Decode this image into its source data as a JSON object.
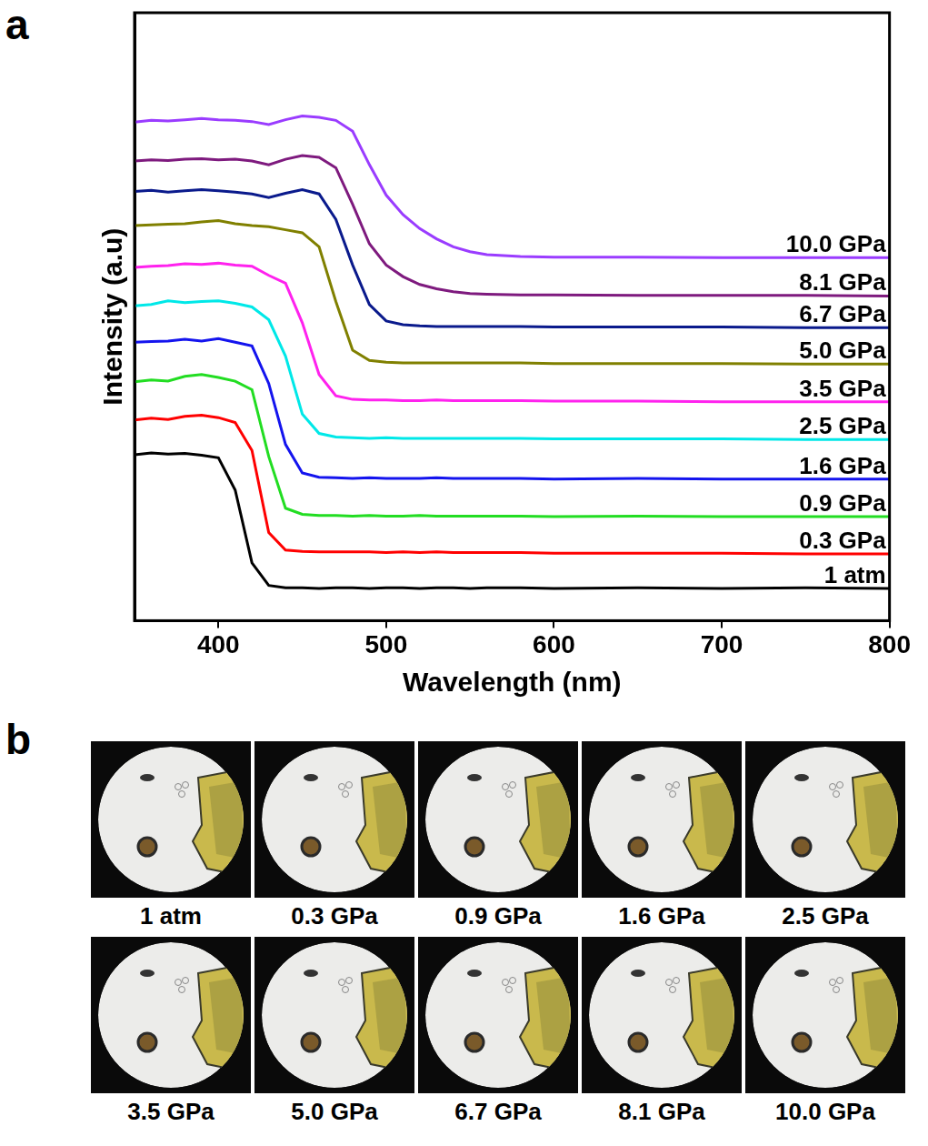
{
  "chart_data": {
    "type": "line",
    "panel_label": "a",
    "x_label": "Wavelength (nm)",
    "y_label": "Intensity (a.u)",
    "x": [
      350,
      360,
      370,
      380,
      390,
      400,
      410,
      420,
      430,
      440,
      450,
      460,
      470,
      480,
      490,
      500,
      510,
      520,
      530,
      540,
      550,
      560,
      580,
      600,
      650,
      700,
      750,
      800
    ],
    "series": [
      {
        "name": "1 atm",
        "color": "#000000",
        "values": [
          27.3,
          27.6,
          27.4,
          27.5,
          27.2,
          26.8,
          21.5,
          9.5,
          5.8,
          5.4,
          5.4,
          5.3,
          5.4,
          5.4,
          5.3,
          5.4,
          5.4,
          5.3,
          5.4,
          5.4,
          5.3,
          5.4,
          5.4,
          5.3,
          5.4,
          5.3,
          5.4,
          5.3
        ]
      },
      {
        "name": "0.3 GPa",
        "color": "#ff0000",
        "values": [
          33.0,
          33.3,
          33.1,
          33.6,
          33.8,
          33.4,
          32.6,
          28.0,
          14.5,
          11.6,
          11.4,
          11.3,
          11.3,
          11.3,
          11.3,
          11.2,
          11.3,
          11.2,
          11.3,
          11.2,
          11.2,
          11.2,
          11.2,
          11.1,
          11.1,
          11.1,
          11.0,
          11.0
        ]
      },
      {
        "name": "0.9 GPa",
        "color": "#22dd22",
        "values": [
          39.3,
          39.6,
          39.4,
          40.2,
          40.5,
          40.0,
          39.4,
          38.0,
          27.0,
          18.5,
          17.5,
          17.3,
          17.3,
          17.2,
          17.3,
          17.2,
          17.2,
          17.3,
          17.2,
          17.2,
          17.2,
          17.2,
          17.2,
          17.1,
          17.2,
          17.1,
          17.1,
          17.1
        ]
      },
      {
        "name": "1.6 GPa",
        "color": "#1414ee",
        "values": [
          45.8,
          45.9,
          46.0,
          46.3,
          46.0,
          46.4,
          45.8,
          45.2,
          39.0,
          29.0,
          24.3,
          23.6,
          23.5,
          23.4,
          23.5,
          23.4,
          23.4,
          23.4,
          23.5,
          23.4,
          23.4,
          23.4,
          23.4,
          23.3,
          23.4,
          23.3,
          23.3,
          23.3
        ]
      },
      {
        "name": "2.5 GPa",
        "color": "#00e8e8",
        "values": [
          51.8,
          52.0,
          52.6,
          52.3,
          52.5,
          52.6,
          52.2,
          51.6,
          49.5,
          43.5,
          34.0,
          30.8,
          30.2,
          30.1,
          30.0,
          30.1,
          30.0,
          30.0,
          30.0,
          30.0,
          30.0,
          30.0,
          30.0,
          29.9,
          29.9,
          29.9,
          29.8,
          29.8
        ]
      },
      {
        "name": "3.5 GPa",
        "color": "#ff22ee",
        "values": [
          58.1,
          58.3,
          58.4,
          58.7,
          58.6,
          58.8,
          58.5,
          58.3,
          56.8,
          55.5,
          49.0,
          40.5,
          37.0,
          36.4,
          36.3,
          36.3,
          36.2,
          36.2,
          36.3,
          36.2,
          36.2,
          36.2,
          36.2,
          36.1,
          36.1,
          36.0,
          36.0,
          36.0
        ]
      },
      {
        "name": "5.0 GPa",
        "color": "#808000",
        "values": [
          65.0,
          65.1,
          65.2,
          65.3,
          65.6,
          65.8,
          65.3,
          65.0,
          64.8,
          64.3,
          63.8,
          61.5,
          52.5,
          44.5,
          42.8,
          42.5,
          42.4,
          42.4,
          42.4,
          42.4,
          42.4,
          42.4,
          42.4,
          42.3,
          42.3,
          42.3,
          42.2,
          42.2
        ]
      },
      {
        "name": "6.7 GPa",
        "color": "#0a1a8c",
        "values": [
          70.6,
          70.8,
          70.5,
          70.7,
          70.9,
          70.7,
          70.5,
          70.2,
          69.6,
          70.3,
          70.9,
          70.2,
          66.0,
          58.5,
          52.0,
          49.3,
          48.7,
          48.5,
          48.4,
          48.4,
          48.4,
          48.4,
          48.4,
          48.3,
          48.3,
          48.3,
          48.2,
          48.2
        ]
      },
      {
        "name": "8.1 GPa",
        "color": "#7e1a7e",
        "values": [
          75.6,
          75.8,
          75.7,
          75.9,
          76.0,
          75.8,
          75.9,
          75.6,
          75.0,
          75.9,
          76.5,
          76.2,
          74.5,
          68.5,
          62.0,
          58.5,
          56.6,
          55.3,
          54.6,
          54.1,
          53.8,
          53.7,
          53.6,
          53.6,
          53.5,
          53.5,
          53.5,
          53.4
        ]
      },
      {
        "name": "10.0 GPa",
        "color": "#9a3cff",
        "values": [
          82.0,
          82.3,
          82.2,
          82.4,
          82.6,
          82.4,
          82.3,
          82.1,
          81.6,
          82.4,
          83.0,
          82.8,
          82.3,
          80.5,
          75.0,
          70.0,
          66.8,
          64.5,
          62.8,
          61.5,
          60.7,
          60.2,
          59.9,
          59.8,
          59.8,
          59.7,
          59.7,
          59.7
        ]
      }
    ],
    "xlim": [
      350,
      800
    ],
    "xticks": [
      400,
      500,
      600,
      700,
      800
    ],
    "ylim": [
      0,
      100
    ],
    "tick_labels": "x",
    "grid": false
  },
  "photo_panel": {
    "panel_label": "b",
    "captions": [
      "1 atm",
      "0.3 GPa",
      "0.9 GPa",
      "1.6 GPa",
      "2.5 GPa",
      "3.5 GPa",
      "5.0 GPa",
      "6.7 GPa",
      "8.1 GPa",
      "10.0 GPa"
    ]
  }
}
